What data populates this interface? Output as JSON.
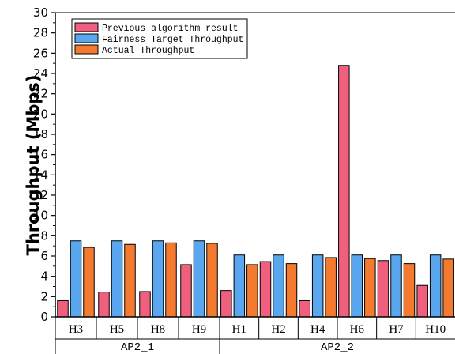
{
  "chart_data": {
    "type": "bar",
    "ylabel": "Throughput (Mbps)",
    "xlabel": "",
    "ylim": [
      0,
      30
    ],
    "yticks": [
      0,
      2,
      4,
      6,
      8,
      10,
      12,
      14,
      16,
      18,
      20,
      22,
      24,
      26,
      28,
      30
    ],
    "categories": [
      "H3",
      "H5",
      "H8",
      "H9",
      "H1",
      "H2",
      "H4",
      "H6",
      "H7",
      "H10"
    ],
    "groups": [
      {
        "label": "AP2_1",
        "categories": [
          "H3",
          "H5",
          "H8",
          "H9"
        ]
      },
      {
        "label": "AP2_2",
        "categories": [
          "H1",
          "H2",
          "H4",
          "H6",
          "H7",
          "H10"
        ]
      }
    ],
    "series": [
      {
        "name": "Previous algorithm result",
        "color": "#F0607E",
        "values": [
          1.6,
          2.45,
          2.5,
          5.15,
          2.6,
          5.45,
          1.6,
          24.8,
          5.55,
          3.1
        ]
      },
      {
        "name": "Fairness Target Throughput",
        "color": "#5AA7F0",
        "values": [
          7.5,
          7.5,
          7.5,
          7.5,
          6.1,
          6.1,
          6.1,
          6.1,
          6.1,
          6.1
        ]
      },
      {
        "name": "Actual Throughput",
        "color": "#F47A30",
        "values": [
          6.85,
          7.15,
          7.3,
          7.25,
          5.15,
          5.25,
          5.85,
          5.75,
          5.25,
          5.7
        ]
      }
    ],
    "legend_position": "top-left",
    "grid": false
  }
}
